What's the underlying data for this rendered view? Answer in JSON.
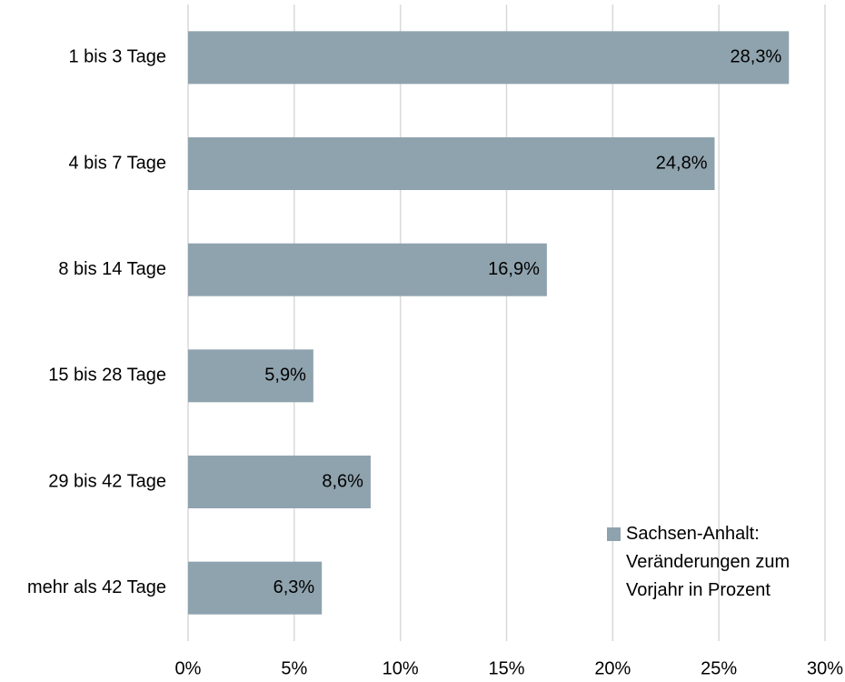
{
  "chart_data": {
    "type": "barh",
    "categories": [
      "1 bis 3 Tage",
      "4 bis 7 Tage",
      "8 bis 14 Tage",
      "15 bis 28 Tage",
      "29 bis 42 Tage",
      "mehr als 42 Tage"
    ],
    "series": [
      {
        "name": "Sachsen-Anhalt: Veränderungen zum Vorjahr in Prozent",
        "color": "#8fa3ae",
        "values": [
          28.3,
          24.8,
          16.9,
          5.9,
          8.6,
          6.3
        ],
        "value_labels": [
          "28,3%",
          "24,8%",
          "16,9%",
          "5,9%",
          "8,6%",
          "6,3%"
        ]
      }
    ],
    "xlim": [
      0,
      30
    ],
    "xticks": [
      {
        "value": 0,
        "label": "0%"
      },
      {
        "value": 5,
        "label": "5%"
      },
      {
        "value": 10,
        "label": "10%"
      },
      {
        "value": 15,
        "label": "15%"
      },
      {
        "value": 20,
        "label": "20%"
      },
      {
        "value": 25,
        "label": "25%"
      },
      {
        "value": 30,
        "label": "30%"
      }
    ],
    "grid": true,
    "legend": "lower right"
  }
}
